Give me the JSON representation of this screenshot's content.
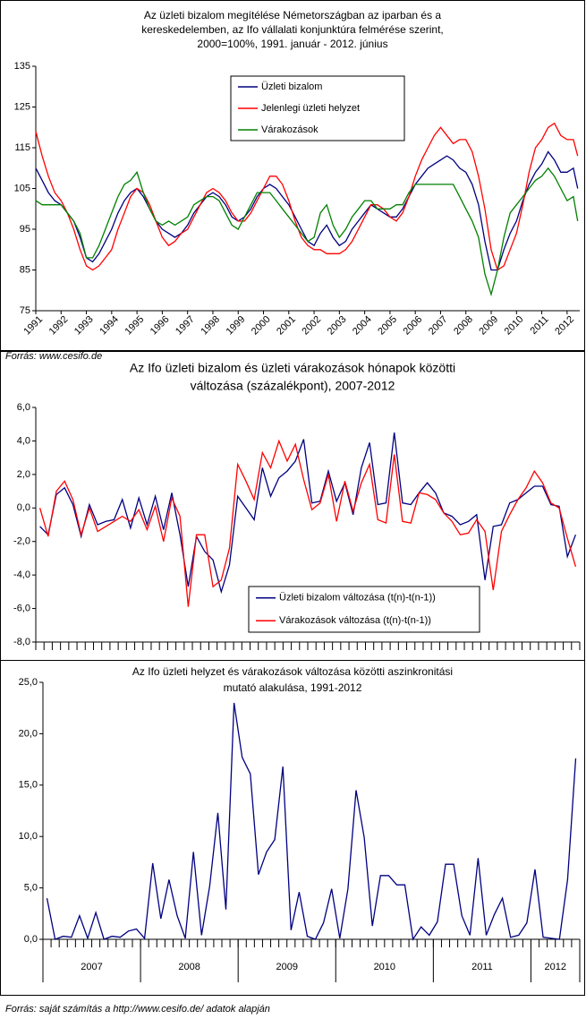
{
  "chart_data": [
    {
      "type": "line",
      "title": [
        "Az üzleti bizalom megítélése Németországban az iparban és a",
        "kereskedelemben, az Ifo vállalati konjunktúra felmérése szerint,",
        "2000=100%, 1991. január - 2012. június"
      ],
      "source": "Forrás: www.cesifo.de",
      "legend": "top",
      "xlim": [
        1991,
        2012.5
      ],
      "xticks": [
        1991,
        1992,
        1993,
        1994,
        1995,
        1996,
        1997,
        1998,
        1999,
        2000,
        2001,
        2002,
        2003,
        2004,
        2005,
        2006,
        2007,
        2008,
        2009,
        2010,
        2011,
        2012
      ],
      "ylim": [
        75,
        135
      ],
      "yticks": [
        75,
        85,
        95,
        105,
        115,
        125,
        135
      ],
      "x": [
        1991,
        1991.25,
        1991.5,
        1991.75,
        1992,
        1992.25,
        1992.5,
        1992.75,
        1993,
        1993.25,
        1993.5,
        1993.75,
        1994,
        1994.25,
        1994.5,
        1994.75,
        1995,
        1995.25,
        1995.5,
        1995.75,
        1996,
        1996.25,
        1996.5,
        1996.75,
        1997,
        1997.25,
        1997.5,
        1997.75,
        1998,
        1998.25,
        1998.5,
        1998.75,
        1999,
        1999.25,
        1999.5,
        1999.75,
        2000,
        2000.25,
        2000.5,
        2000.75,
        2001,
        2001.25,
        2001.5,
        2001.75,
        2002,
        2002.25,
        2002.5,
        2002.75,
        2003,
        2003.25,
        2003.5,
        2003.75,
        2004,
        2004.25,
        2004.5,
        2004.75,
        2005,
        2005.25,
        2005.5,
        2005.75,
        2006,
        2006.25,
        2006.5,
        2006.75,
        2007,
        2007.25,
        2007.5,
        2007.75,
        2008,
        2008.25,
        2008.5,
        2008.75,
        2009,
        2009.25,
        2009.5,
        2009.75,
        2010,
        2010.25,
        2010.5,
        2010.75,
        2011,
        2011.25,
        2011.5,
        2011.75,
        2012,
        2012.25,
        2012.42
      ],
      "series": [
        {
          "name": "Üzleti bizalom",
          "color": "#000080",
          "values": [
            110,
            107,
            104,
            102,
            101,
            99,
            97,
            93,
            88,
            87,
            89,
            92,
            95,
            99,
            102,
            104,
            105,
            103,
            100,
            97,
            95,
            94,
            93,
            94,
            96,
            99,
            101,
            103,
            104,
            103,
            101,
            98,
            97,
            98,
            100,
            103,
            105,
            106,
            105,
            103,
            101,
            98,
            95,
            92,
            91,
            94,
            96,
            93,
            91,
            92,
            95,
            97,
            99,
            101,
            100,
            99,
            98,
            98,
            100,
            103,
            106,
            108,
            110,
            111,
            112,
            113,
            112,
            110,
            109,
            106,
            101,
            92,
            85,
            85,
            90,
            94,
            97,
            102,
            106,
            109,
            111,
            114,
            112,
            109,
            109,
            110,
            105
          ]
        },
        {
          "name": "Jelenlegi üzleti helyzet",
          "color": "#ff0000",
          "values": [
            119,
            113,
            108,
            104,
            102,
            99,
            95,
            90,
            86,
            85,
            86,
            88,
            90,
            95,
            99,
            103,
            105,
            104,
            101,
            97,
            93,
            91,
            92,
            94,
            95,
            98,
            101,
            104,
            105,
            104,
            102,
            99,
            97,
            97,
            99,
            102,
            105,
            108,
            108,
            106,
            102,
            97,
            93,
            91,
            90,
            90,
            89,
            89,
            89,
            90,
            92,
            95,
            98,
            101,
            101,
            100,
            98,
            97,
            99,
            103,
            108,
            112,
            115,
            118,
            120,
            118,
            116,
            117,
            117,
            114,
            108,
            100,
            90,
            85,
            86,
            90,
            94,
            101,
            109,
            115,
            117,
            120,
            121,
            118,
            117,
            117,
            113
          ]
        },
        {
          "name": "Várakozások",
          "color": "#008000",
          "values": [
            102,
            101,
            101,
            101,
            101,
            99,
            97,
            94,
            88,
            88,
            91,
            95,
            99,
            103,
            106,
            107,
            109,
            104,
            100,
            97,
            96,
            97,
            96,
            97,
            98,
            101,
            102,
            103,
            103,
            102,
            99,
            96,
            95,
            98,
            101,
            104,
            104,
            104,
            102,
            100,
            98,
            96,
            94,
            92,
            93,
            99,
            101,
            96,
            93,
            95,
            98,
            100,
            102,
            102,
            100,
            100,
            100,
            101,
            101,
            104,
            106,
            106,
            106,
            106,
            106,
            106,
            106,
            103,
            100,
            97,
            93,
            84,
            79,
            85,
            93,
            99,
            101,
            103,
            105,
            107,
            108,
            110,
            108,
            105,
            102,
            103,
            97
          ]
        }
      ]
    },
    {
      "type": "line",
      "title": [
        "Az Ifo üzleti bizalom és üzleti várakozások hónapok közötti",
        "változása (százalékpont), 2007-2012"
      ],
      "legend": "bottom",
      "ylim": [
        -8,
        6
      ],
      "yticks": [
        {
          "value": -8,
          "label": "-8,0"
        },
        {
          "value": -6,
          "label": "-6,0"
        },
        {
          "value": -4,
          "label": "-4,0"
        },
        {
          "value": -2,
          "label": "-2,0"
        },
        {
          "value": 0,
          "label": "0,0"
        },
        {
          "value": 2,
          "label": "2,0"
        },
        {
          "value": 4,
          "label": "4,0"
        },
        {
          "value": 6,
          "label": "6,0"
        }
      ],
      "series": [
        {
          "name": "Üzleti bizalom változása (t(n)-t(n-1))",
          "color": "#000080",
          "values": [
            -1.1,
            -1.6,
            0.8,
            1.2,
            0.2,
            -1.7,
            0.2,
            -1.0,
            -0.8,
            -0.7,
            0.5,
            -1.2,
            0.6,
            -1.0,
            0.7,
            -1.3,
            0.9,
            -1.6,
            -4.7,
            -1.7,
            -2.6,
            -3.1,
            -5.0,
            -3.4,
            0.7,
            0.0,
            -0.7,
            2.4,
            0.7,
            1.8,
            2.2,
            2.8,
            4.1,
            0.3,
            0.4,
            2.2,
            0.4,
            1.5,
            -0.4,
            2.4,
            3.9,
            0.2,
            0.3,
            4.5,
            0.3,
            0.2,
            0.9,
            1.5,
            0.9,
            -0.3,
            -0.5,
            -1.0,
            -0.8,
            -0.4,
            -4.3,
            -1.1,
            -1.0,
            0.3,
            0.5,
            0.9,
            1.3,
            1.3,
            0.2,
            0.1,
            -2.9,
            -1.6
          ]
        },
        {
          "name": "Várakozások változása (t(n)-t(n-1))",
          "color": "#ff0000",
          "values": [
            0.0,
            -1.7,
            1.0,
            1.6,
            0.5,
            -1.6,
            0.0,
            -1.4,
            -1.1,
            -0.8,
            -0.5,
            -0.8,
            -0.1,
            -1.3,
            0.1,
            -2.0,
            0.6,
            -0.5,
            -5.9,
            -1.6,
            -1.6,
            -4.7,
            -4.3,
            -2.4,
            2.6,
            1.6,
            0.5,
            3.3,
            2.4,
            4.0,
            2.8,
            3.8,
            1.7,
            -0.1,
            0.3,
            2.0,
            -0.8,
            1.6,
            -0.2,
            1.5,
            2.6,
            -0.7,
            -0.9,
            3.2,
            -0.8,
            -0.9,
            0.9,
            0.8,
            0.5,
            -0.3,
            -0.8,
            -1.6,
            -1.5,
            -0.7,
            -1.4,
            -4.9,
            -1.4,
            -0.4,
            0.5,
            1.2,
            2.2,
            1.5,
            0.3,
            0.0,
            -1.8,
            -3.5
          ]
        }
      ]
    },
    {
      "type": "line",
      "title": [
        "Az Ifo üzleti helyzet és várakozások változása közötti aszinkronitási",
        "mutató alakulása, 1991-2012"
      ],
      "source": "Forrás: saját számítás a http://www.cesifo.de/ adatok alapján",
      "group_labels": [
        2007,
        2008,
        2009,
        2010,
        2011,
        2012
      ],
      "ylim": [
        0,
        25
      ],
      "yticks": [
        {
          "value": 0,
          "label": "0,0"
        },
        {
          "value": 5,
          "label": "5,0"
        },
        {
          "value": 10,
          "label": "10,0"
        },
        {
          "value": 15,
          "label": "15,0"
        },
        {
          "value": 20,
          "label": "20,0"
        },
        {
          "value": 25,
          "label": "25,0"
        }
      ],
      "color": "#000080",
      "values": [
        4.0,
        0.0,
        0.3,
        0.2,
        2.3,
        0.1,
        2.6,
        0.0,
        0.3,
        0.2,
        0.8,
        1.0,
        0.1,
        7.4,
        2.0,
        5.8,
        2.3,
        0.1,
        8.5,
        0.4,
        5.2,
        12.3,
        2.9,
        23.0,
        17.7,
        16.1,
        6.3,
        8.5,
        9.7,
        16.8,
        0.9,
        4.6,
        0.3,
        0.0,
        1.6,
        4.9,
        0.1,
        4.9,
        14.5,
        9.9,
        1.3,
        6.2,
        6.2,
        5.3,
        5.3,
        0.0,
        1.2,
        0.4,
        1.7,
        7.3,
        7.3,
        2.3,
        0.4,
        7.9,
        0.4,
        2.4,
        4.0,
        0.2,
        0.4,
        1.6,
        6.8,
        0.2,
        0.1,
        0.0,
        5.8,
        17.6
      ]
    }
  ]
}
